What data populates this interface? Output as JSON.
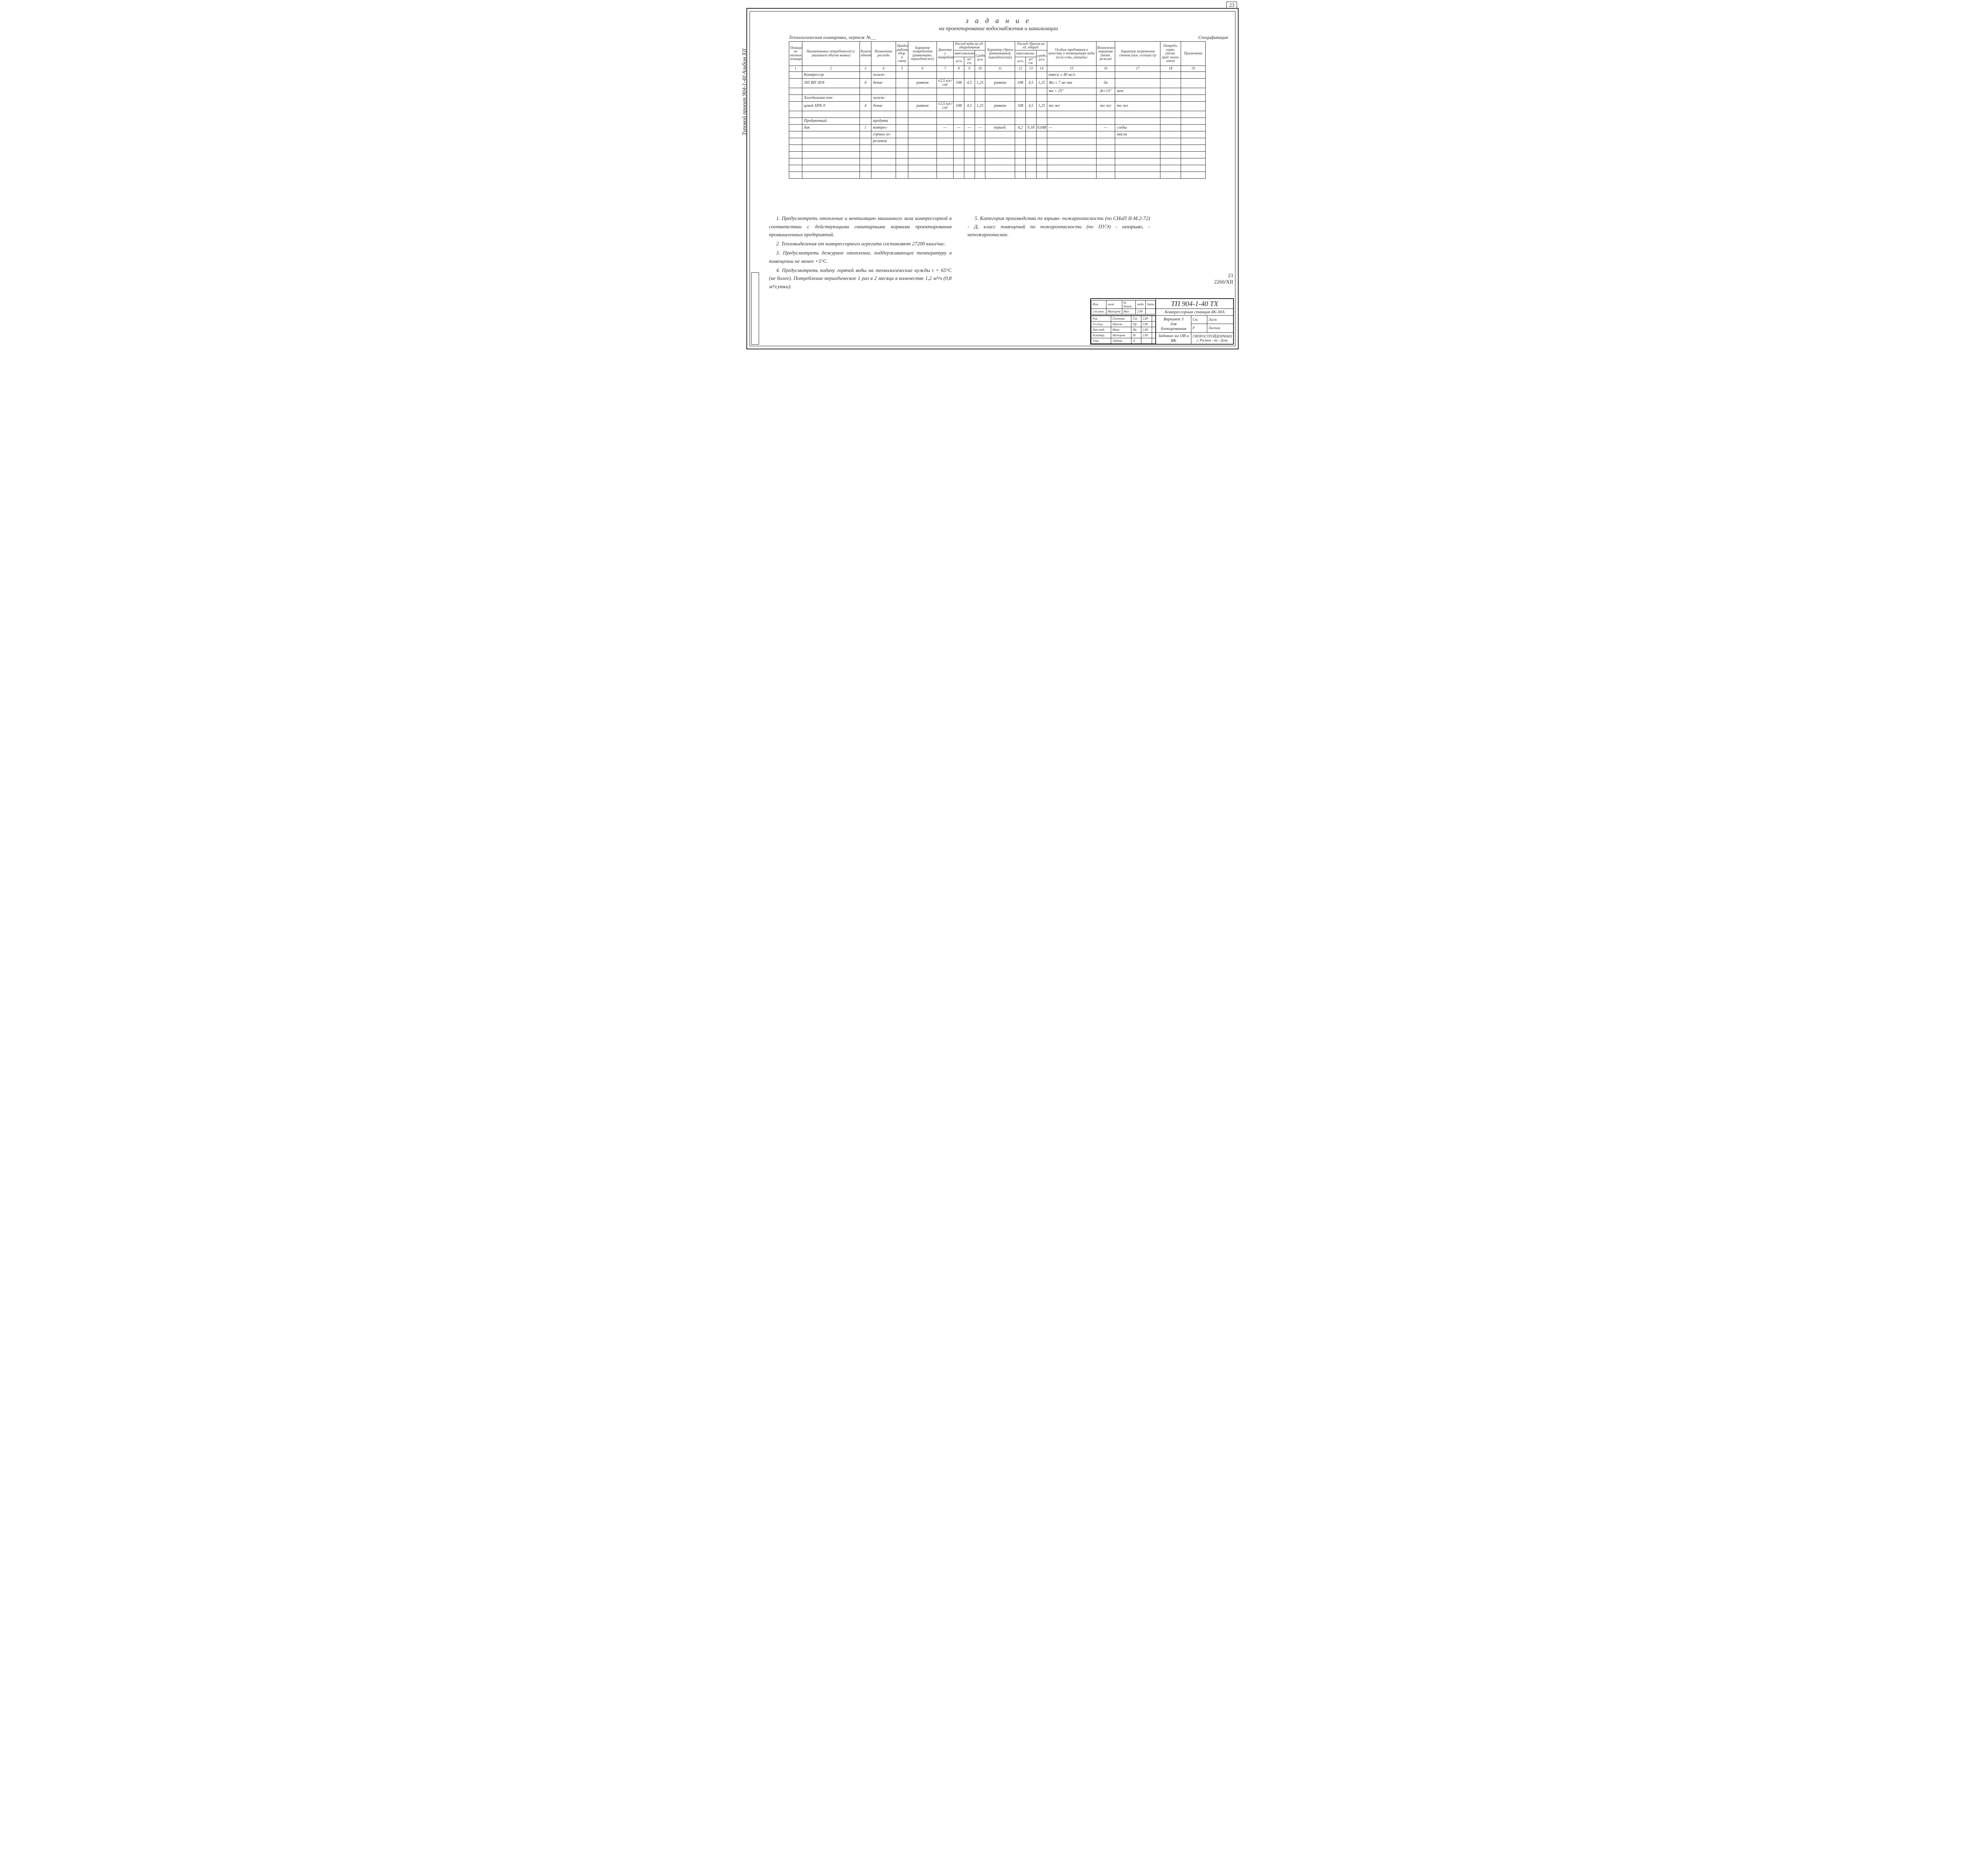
{
  "page_number_top": "23",
  "side_text": "Типовой   проект   904-1-40      Альбом XII",
  "title": "з а д а н и е",
  "subtitle": "на проектирование водоснабжения и канализации",
  "above_left": "Технологическая планировка, чертеж №__",
  "above_right": "Спецификация",
  "headers": {
    "c1": "Позиция по технологической планировке",
    "c2": "Наименование потребителей (с указанием объёма ванны)",
    "c3": "Количество однотипн.",
    "c4": "Назначение расхода",
    "c5": "Продолжит. работы обор. в смену",
    "c6": "Характер потребления (равномерно, периодическое)",
    "c7": "Давление у потребителя",
    "g1": "Расход воды на ед. оборудования",
    "g1a": "максимальный",
    "c8": "Средн. м³/ч",
    "c9": "м³/ч",
    "c10": "м³/см.",
    "c11": "Характер сброса (равномерный, периодический)",
    "g2": "Расход сбросов на ед. оборуд.",
    "g2a": "максимальн.",
    "c12": "средн. м³/ч",
    "c13": "м³/ч",
    "c14": "м³/см.",
    "c15": "Особые требования к качеству и температуре воды (если есть, указать)",
    "c16": "Возможность перерыва (темп. режим)",
    "c17": "Характер загрязнения стоков (хим. состав) t/p",
    "c18": "Потребл. горяч. (темп. град. колич. имен)",
    "c19": "Примечание"
  },
  "numrow": [
    "1",
    "2",
    "3",
    "4",
    "5",
    "6",
    "7",
    "8",
    "9",
    "10",
    "11",
    "12",
    "13",
    "14",
    "15",
    "16",
    "17",
    "18",
    "19"
  ],
  "rows": [
    {
      "c2": "Компрессор",
      "c4": "охлаж-",
      "c15": "взвеси ≤ 40 мг/л"
    },
    {
      "c2": "305 ВП 30/8",
      "c3": "4",
      "c4": "дение",
      "c6": "равном",
      "c7": "±2,5 кгс/см²",
      "c8": "108",
      "c9": "4,5",
      "c10": "1,25",
      "c11": "равном",
      "c12": "108",
      "c13": "4,5",
      "c14": "1,25",
      "c15": "Жо ≤ 7 мг-экв",
      "c16": "да"
    },
    {
      "c15": "tвх = 25°",
      "c16": "Δt=15°",
      "c17": "нет"
    },
    {
      "c2": "Холодильник кон-",
      "c4": "охлаж-"
    },
    {
      "c2": "цевой  ХРК-9",
      "c3": "4",
      "c4": "дение",
      "c6": "равном",
      "c7": "±2,5 кгс/см²",
      "c8": "108",
      "c9": "4,5",
      "c10": "1,25",
      "c11": "равном",
      "c12": "108",
      "c13": "4,5",
      "c14": "1,25",
      "c15": "то  же",
      "c16": "то же",
      "c17": "то  же"
    },
    {},
    {
      "c2": "Продувочный",
      "c4": "продувка"
    },
    {
      "c2": "бак",
      "c3": "1",
      "c4": "компрес-",
      "c7": "—",
      "c8": "—",
      "c9": "—",
      "c10": "—",
      "c11": "период.",
      "c12": "4,2",
      "c13": "0,18",
      "c14": "0,048",
      "c15": "—",
      "c16": "—",
      "c17": "следы"
    },
    {
      "c4": "сорных аг-",
      "c17": "масла"
    },
    {
      "c4": "регатов"
    },
    {},
    {},
    {},
    {},
    {}
  ],
  "notes_left": [
    "1. Предусмотреть отопление и вентиляцию машинного зала компрессорной в соответствии с действующими санитарными нормами проектирования промышленных предприятий.",
    "2. Тепловыделения от компрессорного агрегата составляют 27200 ккал/час.",
    "3. Предусмотреть дежурное отопление, поддерживающее температуру в помещении не менее +5°С.",
    "4. Предусмотреть подачу горячей воды на технологические нужды t = 65°С (не более). Потребление периодическое 1 раз в 2 месяца в количестве 1,2 м³/ч (0,8 м³/сутки)."
  ],
  "notes_right": [
    "5. Категория производства по взрыво- пожароопасности (по СНиП II-М.2-72) - Д, класс помещений по пожароопасности (по ПУЭ) - невзрыво, - непожароопасное."
  ],
  "sheet_label_num": "23",
  "sheet_label_code": "2260/XII",
  "stamp": {
    "code": "ТП 904-1-40 ТХ",
    "line1": "Компрессорная   станция    4К-30А",
    "line2a": "Вариант 3",
    "line2b": "для блокирования",
    "line3": "Задание на ОВ и ВК",
    "org1": "ГИПРОСТРОЙДОРМАШ",
    "org2": "г. Ростов - на - Дону",
    "roles": [
      [
        "Изм.",
        "лист",
        "№ докум.",
        "подп.",
        "дата"
      ],
      [
        "Ст.инж.",
        "Мальцева",
        "Мал",
        "2.80"
      ],
      [
        "Рук.",
        "Голенова",
        "Гол",
        "2.80"
      ],
      [
        "Гл.спец.",
        "Просов",
        "Пр",
        "2.80"
      ],
      [
        "Нач.отд.",
        "Иван",
        "Ив",
        "2.80"
      ],
      [
        "Н.контр.",
        "Мельцева",
        "М",
        "2.80"
      ],
      [
        "Утв.",
        "Леднов",
        "Л",
        ""
      ]
    ],
    "cols_right": [
      "Ст.",
      "Лист",
      "Листов"
    ],
    "p": "Р"
  }
}
